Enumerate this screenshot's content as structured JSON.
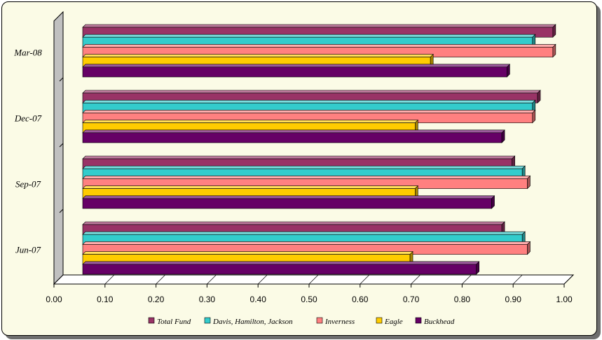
{
  "chart_data": {
    "type": "bar",
    "orientation": "horizontal",
    "title": "",
    "xlabel": "",
    "ylabel": "",
    "xlim": [
      0,
      1
    ],
    "x_ticks": [
      "0.00",
      "0.10",
      "0.20",
      "0.30",
      "0.40",
      "0.50",
      "0.60",
      "0.70",
      "0.80",
      "0.90",
      "1.00"
    ],
    "categories": [
      "Mar-08",
      "Dec-07",
      "Sep-07",
      "Jun-07"
    ],
    "series": [
      {
        "name": "Total Fund",
        "color": "#993366",
        "values": [
          0.96,
          0.93,
          0.88,
          0.86
        ]
      },
      {
        "name": "Davis, Hamilton, Jackson",
        "color": "#33cccc",
        "values": [
          0.92,
          0.92,
          0.9,
          0.9
        ]
      },
      {
        "name": "Inverness",
        "color": "#ff8080",
        "values": [
          0.96,
          0.92,
          0.91,
          0.91
        ]
      },
      {
        "name": "Eagle",
        "color": "#ffcc00",
        "values": [
          0.72,
          0.69,
          0.69,
          0.68
        ]
      },
      {
        "name": "Buckhead",
        "color": "#660066",
        "values": [
          0.87,
          0.86,
          0.84,
          0.81
        ]
      }
    ],
    "grid": false,
    "legend_position": "bottom"
  }
}
